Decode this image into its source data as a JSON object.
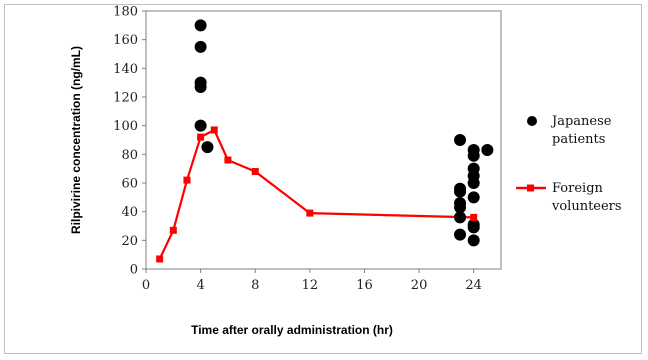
{
  "chart_data": {
    "type": "scatter",
    "xlabel": "Time after orally administration (hr)",
    "ylabel": "Rilpivirine concentration (ng/mL)",
    "xlim": [
      0,
      26
    ],
    "ylim": [
      0,
      180
    ],
    "xticks": [
      "0",
      "4",
      "8",
      "12",
      "16",
      "20",
      "24"
    ],
    "yticks": [
      "0",
      "20",
      "40",
      "60",
      "80",
      "100",
      "120",
      "140",
      "160",
      "180"
    ],
    "grid": false,
    "legend_position": "right",
    "series": [
      {
        "name": "Japanese patients",
        "type": "scatter",
        "color": "#000000",
        "marker": "circle",
        "points": [
          [
            4,
            170
          ],
          [
            4,
            155
          ],
          [
            4,
            130
          ],
          [
            4,
            127
          ],
          [
            4,
            100
          ],
          [
            4.5,
            85
          ],
          [
            23,
            90
          ],
          [
            23,
            56
          ],
          [
            23,
            54
          ],
          [
            23,
            46
          ],
          [
            23,
            43
          ],
          [
            23,
            36
          ],
          [
            23,
            24
          ],
          [
            24,
            83
          ],
          [
            24,
            79
          ],
          [
            24,
            70
          ],
          [
            24,
            65
          ],
          [
            24,
            60
          ],
          [
            24,
            50
          ],
          [
            24,
            31
          ],
          [
            24,
            29
          ],
          [
            24,
            20
          ],
          [
            25,
            83
          ]
        ]
      },
      {
        "name": "Foreign volunteers",
        "type": "line",
        "color": "#ff0000",
        "marker": "square",
        "points": [
          [
            1,
            7
          ],
          [
            2,
            27
          ],
          [
            3,
            62
          ],
          [
            4,
            92
          ],
          [
            5,
            97
          ],
          [
            6,
            76
          ],
          [
            8,
            68
          ],
          [
            12,
            39
          ],
          [
            24,
            36
          ]
        ]
      }
    ]
  },
  "legend": {
    "japanese_line1": "Japanese",
    "japanese_line2": "patients",
    "foreign_line1": "Foreign",
    "foreign_line2": "volunteers"
  }
}
